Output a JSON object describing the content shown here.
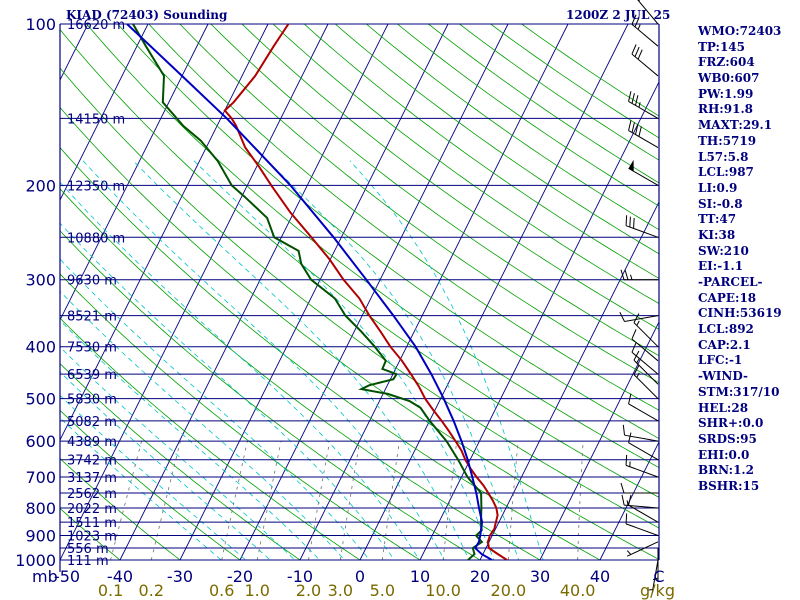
{
  "header": {
    "station": "KIAD (72403) Sounding",
    "time": "1200Z  2 JUL 25"
  },
  "colors": {
    "axis": "#00007f",
    "isotherm": "#00007f",
    "dry_adiabat": "#00a000",
    "moist_adiabat": "#00c4c4",
    "mixing_ratio": "#707070",
    "temperature": "#b00000",
    "dewpoint": "#005000",
    "parcel": "#0000c0",
    "wind_barb": "#000000",
    "ratio_label": "#7a6a00"
  },
  "axes": {
    "pressure_unit": "mb",
    "mixing_ratio_unit": "g/kg",
    "pressure_levels": [
      100,
      200,
      300,
      400,
      500,
      600,
      700,
      800,
      900,
      1000
    ],
    "temperature_ticks": [
      "-50",
      "-40",
      "-30",
      "-20",
      "-10",
      "0",
      "10",
      "20",
      "30",
      "40",
      "C"
    ],
    "mixing_ratio_labels": [
      "0.1",
      "0.2",
      "0.6",
      "1.0",
      "2.0",
      "3.0",
      "5.0",
      "10.0",
      "20.0",
      "40.0"
    ],
    "height_labels": [
      {
        "p": 100,
        "h": "16620 m"
      },
      {
        "p": 150,
        "h": "14150 m"
      },
      {
        "p": 200,
        "h": "12350 m"
      },
      {
        "p": 250,
        "h": "10880 m"
      },
      {
        "p": 300,
        "h": "9630 m"
      },
      {
        "p": 350,
        "h": "8521 m"
      },
      {
        "p": 400,
        "h": "7530 m"
      },
      {
        "p": 450,
        "h": "6539 m"
      },
      {
        "p": 500,
        "h": "5830 m"
      },
      {
        "p": 550,
        "h": "5082 m"
      },
      {
        "p": 600,
        "h": "4389 m"
      },
      {
        "p": 650,
        "h": "3742 m"
      },
      {
        "p": 700,
        "h": "3137 m"
      },
      {
        "p": 750,
        "h": "2562 m"
      },
      {
        "p": 800,
        "h": "2022 m"
      },
      {
        "p": 850,
        "h": "1511 m"
      },
      {
        "p": 900,
        "h": "1023 m"
      },
      {
        "p": 950,
        "h": "556 m"
      },
      {
        "p": 1000,
        "h": "111 m"
      }
    ],
    "pressure_range": [
      100,
      1000
    ],
    "temperature_range_at_surface": [
      -50,
      50
    ]
  },
  "indices": [
    "WMO:72403",
    "TP:145",
    "FRZ:604",
    "WB0:607",
    "PW:1.99",
    "RH:91.8",
    "MAXT:29.1",
    "TH:5719",
    "L57:5.8",
    "LCL:987",
    "LI:0.9",
    "SI:-0.8",
    "TT:47",
    "KI:38",
    "SW:210",
    "EI:-1.1",
    "-PARCEL-",
    "CAPE:18",
    "CINH:53619",
    "LCL:892",
    "CAP:2.1",
    "LFC:-1",
    "-WIND-",
    "STM:317/10",
    "HEL:28",
    "SHR+:0.0",
    "SRDS:95",
    "EHI:0.0",
    "BRN:1.2",
    "BSHR:15"
  ],
  "chart_data": {
    "type": "skew-t log-p sounding",
    "title": "KIAD (72403) Sounding",
    "subtitle": "1200Z  2 JUL 25",
    "y_axis": "pressure (mb), log scale",
    "x_axis": "temperature (C), skewed",
    "series": [
      {
        "name": "temperature",
        "points": [
          [
            1000,
            24.5
          ],
          [
            975,
            22.5
          ],
          [
            950,
            20.5
          ],
          [
            925,
            19.8
          ],
          [
            900,
            19.6
          ],
          [
            875,
            19.8
          ],
          [
            850,
            19.5
          ],
          [
            825,
            19.2
          ],
          [
            800,
            18.4
          ],
          [
            775,
            17.2
          ],
          [
            750,
            15.8
          ],
          [
            725,
            14.3
          ],
          [
            700,
            12.5
          ],
          [
            675,
            10.8
          ],
          [
            650,
            9.2
          ],
          [
            625,
            7.8
          ],
          [
            600,
            6.0
          ],
          [
            575,
            4.1
          ],
          [
            550,
            2.0
          ],
          [
            525,
            -0.3
          ],
          [
            500,
            -2.6
          ],
          [
            475,
            -4.6
          ],
          [
            450,
            -7.0
          ],
          [
            425,
            -9.6
          ],
          [
            400,
            -12.7
          ],
          [
            375,
            -15.6
          ],
          [
            350,
            -18.8
          ],
          [
            325,
            -21.9
          ],
          [
            300,
            -26.1
          ],
          [
            275,
            -30.1
          ],
          [
            250,
            -35.0
          ],
          [
            225,
            -40.5
          ],
          [
            200,
            -46.0
          ],
          [
            185,
            -49.5
          ],
          [
            170,
            -53.5
          ],
          [
            155,
            -56.8
          ],
          [
            150,
            -58.2
          ],
          [
            145,
            -60.0
          ],
          [
            140,
            -59.2
          ],
          [
            125,
            -57.8
          ],
          [
            110,
            -57.2
          ],
          [
            100,
            -56.6
          ]
        ]
      },
      {
        "name": "dewpoint",
        "points": [
          [
            1000,
            18.0
          ],
          [
            975,
            18.6
          ],
          [
            950,
            17.8
          ],
          [
            925,
            18.8
          ],
          [
            900,
            17.3
          ],
          [
            880,
            17.8
          ],
          [
            850,
            17.0
          ],
          [
            800,
            15.9
          ],
          [
            750,
            14.6
          ],
          [
            700,
            11.0
          ],
          [
            650,
            8.0
          ],
          [
            600,
            4.5
          ],
          [
            550,
            0.0
          ],
          [
            520,
            -2.6
          ],
          [
            505,
            -5.0
          ],
          [
            490,
            -9.2
          ],
          [
            480,
            -14.0
          ],
          [
            472,
            -13.0
          ],
          [
            460,
            -9.5
          ],
          [
            450,
            -9.4
          ],
          [
            440,
            -12.2
          ],
          [
            425,
            -12.3
          ],
          [
            400,
            -15.3
          ],
          [
            375,
            -18.8
          ],
          [
            350,
            -22.8
          ],
          [
            325,
            -26.0
          ],
          [
            300,
            -31.5
          ],
          [
            280,
            -34.5
          ],
          [
            265,
            -36.0
          ],
          [
            250,
            -41.2
          ],
          [
            230,
            -44.0
          ],
          [
            210,
            -49.5
          ],
          [
            200,
            -52.6
          ],
          [
            180,
            -57.0
          ],
          [
            165,
            -61.5
          ],
          [
            155,
            -65.6
          ],
          [
            140,
            -71.0
          ],
          [
            125,
            -73.0
          ],
          [
            110,
            -78.5
          ],
          [
            100,
            -82.5
          ]
        ]
      },
      {
        "name": "parcel",
        "points": [
          [
            1000,
            22.0
          ],
          [
            975,
            19.8
          ],
          [
            950,
            18.2
          ],
          [
            925,
            18.3
          ],
          [
            900,
            18.0
          ],
          [
            875,
            17.6
          ],
          [
            850,
            17.2
          ],
          [
            800,
            15.5
          ],
          [
            750,
            13.8
          ],
          [
            700,
            11.8
          ],
          [
            650,
            9.6
          ],
          [
            600,
            7.0
          ],
          [
            550,
            4.0
          ],
          [
            500,
            0.5
          ],
          [
            450,
            -3.6
          ],
          [
            400,
            -8.5
          ],
          [
            350,
            -14.8
          ],
          [
            300,
            -22.3
          ],
          [
            250,
            -31.3
          ],
          [
            200,
            -42.8
          ],
          [
            150,
            -59.0
          ],
          [
            125,
            -70.0
          ],
          [
            100,
            -83.5
          ]
        ]
      },
      {
        "name": "wind",
        "points": [
          [
            1000,
            190,
            5
          ],
          [
            950,
            180,
            5
          ],
          [
            925,
            245,
            5
          ],
          [
            900,
            290,
            10
          ],
          [
            850,
            300,
            10
          ],
          [
            800,
            275,
            15
          ],
          [
            750,
            270,
            10
          ],
          [
            700,
            290,
            15
          ],
          [
            650,
            300,
            10
          ],
          [
            600,
            280,
            10
          ],
          [
            550,
            300,
            10
          ],
          [
            500,
            315,
            15
          ],
          [
            470,
            315,
            15
          ],
          [
            450,
            310,
            10
          ],
          [
            425,
            310,
            10
          ],
          [
            400,
            315,
            15
          ],
          [
            350,
            260,
            10
          ],
          [
            300,
            270,
            25
          ],
          [
            250,
            290,
            30
          ],
          [
            200,
            300,
            50
          ],
          [
            170,
            300,
            40
          ],
          [
            150,
            300,
            35
          ],
          [
            125,
            310,
            30
          ],
          [
            110,
            310,
            25
          ],
          [
            100,
            320,
            20
          ]
        ]
      }
    ]
  }
}
